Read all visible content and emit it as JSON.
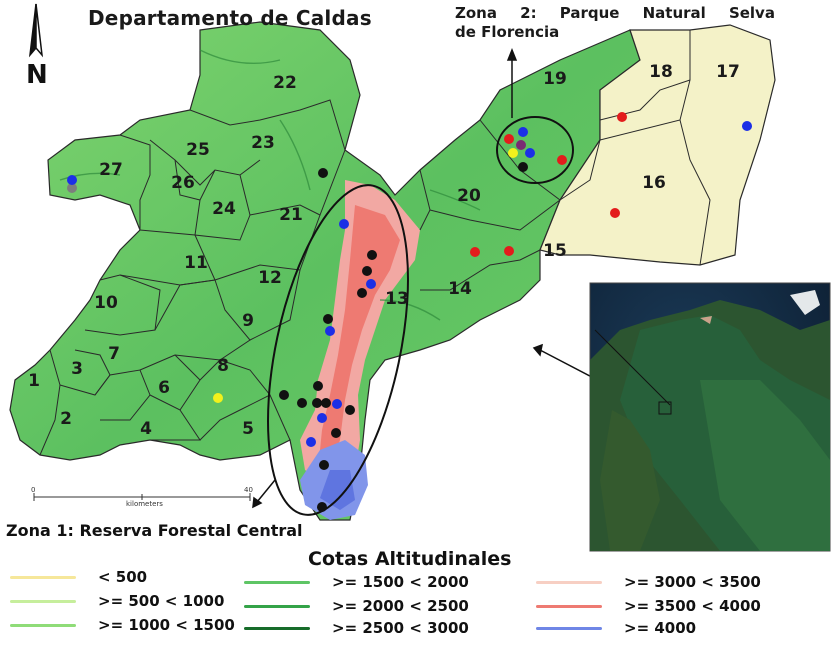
{
  "title": "Departamento de Caldas",
  "zone2_label": {
    "line1_words": [
      "Zona",
      "2:",
      "Parque",
      "Natural",
      "Selva"
    ],
    "line2": "de Florencia"
  },
  "zone1_label": "Zona 1: Reserva Forestal Central",
  "north_label": "N",
  "scale": {
    "start": "0",
    "end": "40",
    "unit": "kilometers"
  },
  "municipalities": [
    {
      "id": "1"
    },
    {
      "id": "2"
    },
    {
      "id": "3"
    },
    {
      "id": "4"
    },
    {
      "id": "5"
    },
    {
      "id": "6"
    },
    {
      "id": "7"
    },
    {
      "id": "8"
    },
    {
      "id": "9"
    },
    {
      "id": "10"
    },
    {
      "id": "11"
    },
    {
      "id": "12"
    },
    {
      "id": "13"
    },
    {
      "id": "14"
    },
    {
      "id": "15"
    },
    {
      "id": "16"
    },
    {
      "id": "17"
    },
    {
      "id": "18"
    },
    {
      "id": "19"
    },
    {
      "id": "20"
    },
    {
      "id": "21"
    },
    {
      "id": "22"
    },
    {
      "id": "23"
    },
    {
      "id": "24"
    },
    {
      "id": "25"
    },
    {
      "id": "26"
    },
    {
      "id": "27"
    }
  ],
  "legend": {
    "title": "Cotas Altitudinales",
    "items": [
      {
        "label": "< 500",
        "color": "#f6e79a"
      },
      {
        "label": ">= 500 < 1000",
        "color": "#c6ee9c"
      },
      {
        "label": ">= 1000 < 1500",
        "color": "#8fdc78"
      },
      {
        "label": ">= 1500 < 2000",
        "color": "#5ec565"
      },
      {
        "label": ">= 2000 < 2500",
        "color": "#34a348"
      },
      {
        "label": ">= 2500 < 3000",
        "color": "#176c2a"
      },
      {
        "label": ">= 3000 < 3500",
        "color": "#f7cfc3"
      },
      {
        "label": ">= 3500 < 4000",
        "color": "#ee7a72"
      },
      {
        "label": ">= 4000",
        "color": "#6f86e6"
      }
    ]
  },
  "marker_colors": {
    "black": "#111111",
    "blue": "#1c2fe6",
    "red": "#e31c1c",
    "yellow": "#f1f11c",
    "purple": "#7a2a73",
    "gray": "#7d7d7d"
  }
}
